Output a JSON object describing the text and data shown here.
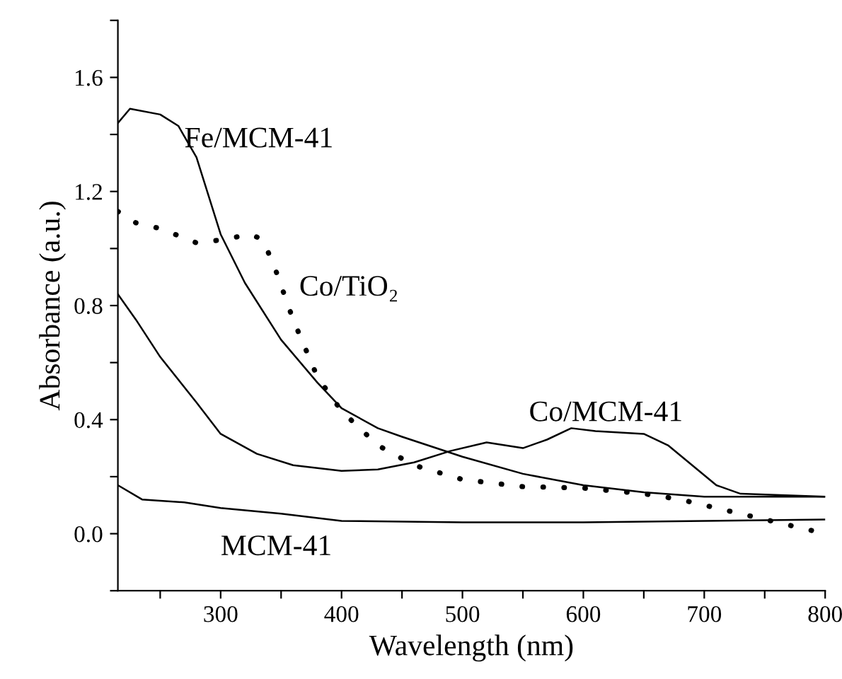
{
  "chart_data": {
    "type": "line",
    "xlabel": "Wavelength (nm)",
    "ylabel": "Absorbance (a.u.)",
    "xlim": [
      215,
      800
    ],
    "ylim": [
      -0.2,
      1.8
    ],
    "xticks": [
      {
        "value": 250,
        "label": null
      },
      300,
      {
        "value": 350,
        "label": null
      },
      400,
      {
        "value": 450,
        "label": null
      },
      500,
      {
        "value": 550,
        "label": null
      },
      600,
      {
        "value": 650,
        "label": null
      },
      700,
      {
        "value": 750,
        "label": null
      },
      800
    ],
    "yticks": [
      {
        "value": -0.2,
        "label": null
      },
      {
        "value": 0,
        "label": "0.0"
      },
      {
        "value": 0.2,
        "label": null
      },
      0.4,
      {
        "value": 0.6,
        "label": null
      },
      0.8,
      {
        "value": 1.0,
        "label": null
      },
      1.2,
      {
        "value": 1.4,
        "label": null
      },
      1.6,
      {
        "value": 1.8,
        "label": null
      }
    ],
    "grid": false,
    "legend": false,
    "marker": "none",
    "series": [
      {
        "name": "Fe/MCM-41",
        "color": "#000000",
        "line_style": "solid",
        "x": [
          215,
          225,
          250,
          265,
          280,
          300,
          320,
          350,
          380,
          400,
          430,
          450,
          500,
          550,
          600,
          650,
          700,
          800
        ],
        "values": [
          1.44,
          1.49,
          1.47,
          1.43,
          1.32,
          1.05,
          0.88,
          0.68,
          0.53,
          0.44,
          0.37,
          0.34,
          0.27,
          0.21,
          0.17,
          0.145,
          0.13,
          0.13
        ]
      },
      {
        "name": "Co/TiO₂",
        "color": "#000000",
        "line_style": "dotted",
        "x": [
          215,
          230,
          250,
          280,
          300,
          325,
          335,
          345,
          360,
          380,
          400,
          430,
          460,
          500,
          550,
          600,
          650,
          680,
          720,
          760,
          800
        ],
        "values": [
          1.13,
          1.09,
          1.07,
          1.02,
          1.03,
          1.05,
          1.03,
          0.93,
          0.75,
          0.55,
          0.43,
          0.31,
          0.24,
          0.19,
          0.165,
          0.16,
          0.14,
          0.12,
          0.08,
          0.04,
          0.0
        ]
      },
      {
        "name": "Co/MCM-41",
        "color": "#000000",
        "line_style": "solid",
        "x": [
          215,
          230,
          250,
          280,
          300,
          330,
          360,
          400,
          430,
          460,
          490,
          520,
          550,
          570,
          590,
          610,
          650,
          670,
          690,
          710,
          730,
          800
        ],
        "values": [
          0.84,
          0.75,
          0.62,
          0.46,
          0.35,
          0.28,
          0.24,
          0.22,
          0.225,
          0.25,
          0.29,
          0.32,
          0.3,
          0.33,
          0.37,
          0.36,
          0.35,
          0.31,
          0.24,
          0.17,
          0.14,
          0.13
        ]
      },
      {
        "name": "MCM-41",
        "color": "#000000",
        "line_style": "solid",
        "x": [
          215,
          235,
          270,
          300,
          350,
          400,
          500,
          600,
          800
        ],
        "values": [
          0.17,
          0.12,
          0.11,
          0.09,
          0.07,
          0.045,
          0.04,
          0.04,
          0.05
        ]
      }
    ]
  }
}
